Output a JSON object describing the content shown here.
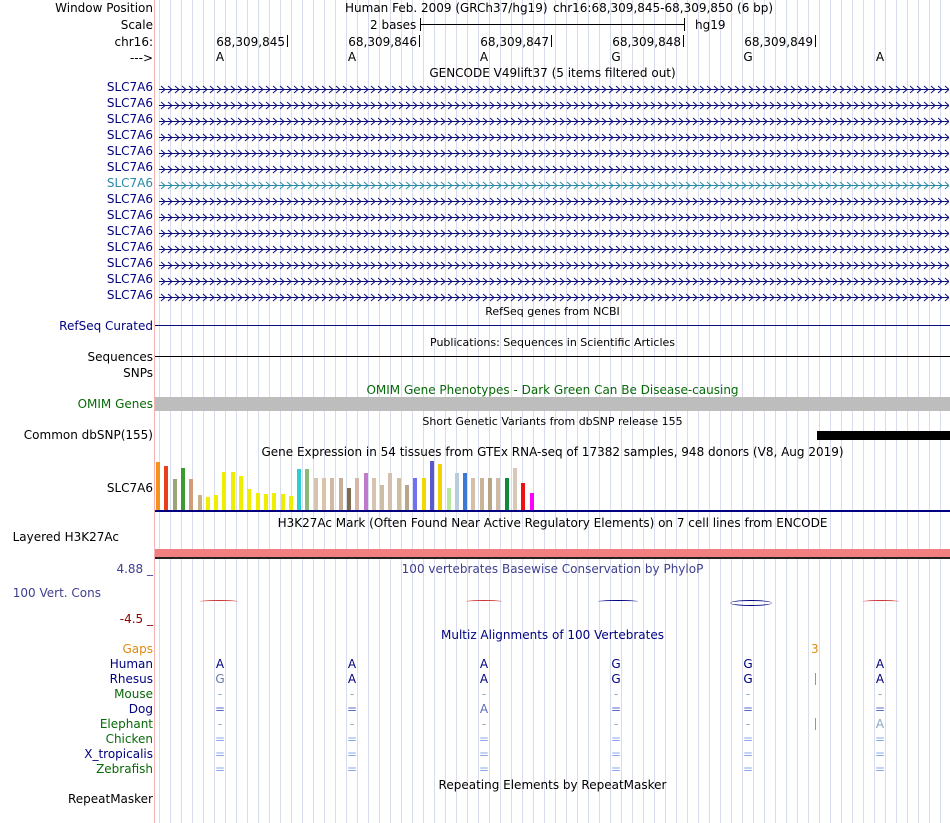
{
  "labels": {
    "window_position": "Window Position",
    "scale": "Scale",
    "chrom": "chr16:",
    "arrow": "--->",
    "refseq": "RefSeq Curated",
    "sequences": "Sequences",
    "snps": "SNPs",
    "omim": "OMIM Genes",
    "common_dbsnp": "Common dbSNP(155)",
    "gtex_gene": "SLC7A6",
    "h3k27ac": "Layered H3K27Ac",
    "cons_max": "4.88 _",
    "cons_label": "100 Vert. Cons",
    "cons_min": "-4.5 _",
    "repeatmasker": "RepeatMasker"
  },
  "header": {
    "assembly": "Human Feb. 2009 (GRCh37/hg19)",
    "position": "chr16:68,309,845-68,309,850 (6 bp)",
    "scale_text": "2 bases",
    "scale_db": "hg19"
  },
  "ruler": {
    "positions": [
      "68,309,845",
      "68,309,846",
      "68,309,847",
      "68,309,848",
      "68,309,849"
    ]
  },
  "bases": [
    "A",
    "A",
    "A",
    "G",
    "G",
    "A"
  ],
  "gencode": {
    "title": "GENCODE V49lift37 (5 items filtered out)",
    "genes": [
      "SLC7A6",
      "SLC7A6",
      "SLC7A6",
      "SLC7A6",
      "SLC7A6",
      "SLC7A6",
      "SLC7A6",
      "SLC7A6",
      "SLC7A6",
      "SLC7A6",
      "SLC7A6",
      "SLC7A6",
      "SLC7A6",
      "SLC7A6"
    ],
    "highlight_index": 6,
    "colors": {
      "default": "#0b0b7a",
      "highlight": "#2a8aa6"
    }
  },
  "tracks": {
    "refseq_title": "RefSeq genes from NCBI",
    "publications_title": "Publications: Sequences in Scientific Articles",
    "omim_title": "OMIM Gene Phenotypes - Dark Green Can Be Disease-causing",
    "dbsnp_title": "Short Genetic Variants from dbSNP release 155",
    "gtex_title": "Gene Expression in 54 tissues from GTEx RNA-seq of 17382 samples, 948 donors (V8, Aug 2019)",
    "h3k27ac_title": "H3K27Ac Mark (Often Found Near Active Regulatory Elements) on 7 cell lines from ENCODE",
    "cons_title": "100 vertebrates Basewise Conservation by PhyloP",
    "multiz_title": "Multiz Alignments of 100 Vertebrates",
    "repeat_title": "Repeating Elements by RepeatMasker"
  },
  "gtex": {
    "values": [
      48,
      44,
      31,
      42,
      31,
      15,
      13,
      15,
      38,
      38,
      34,
      21,
      17,
      16,
      17,
      16,
      14,
      41,
      41,
      32,
      32,
      32,
      32,
      22,
      32,
      37,
      32,
      25,
      37,
      32,
      25,
      32,
      32,
      49,
      46,
      22,
      37,
      37,
      32,
      32,
      32,
      32,
      32,
      42,
      27,
      17
    ],
    "colors": [
      "#f5911e",
      "#e8401c",
      "#9aa67a",
      "#3b9b32",
      "#d19c79",
      "#c9b289",
      "#eeee00",
      "#eeee00",
      "#eeee00",
      "#eeee00",
      "#eeee00",
      "#eeee00",
      "#eeee00",
      "#eeee00",
      "#eeee00",
      "#eeee00",
      "#eeee00",
      "#2ccfd0",
      "#8cb97a",
      "#d6c4b2",
      "#dcc2aa",
      "#d1b8a4",
      "#c8ad98",
      "#7d6b52",
      "#d4b8a6",
      "#c17ac9",
      "#d8c2b0",
      "#cdbda7",
      "#d3c0ae",
      "#cdbea0",
      "#b8a58e",
      "#7070f0",
      "#f0d800",
      "#5959cc",
      "#f2d200",
      "#b7e6a0",
      "#b8cce0",
      "#3b78d8",
      "#d4bfaa",
      "#c9b498",
      "#b8a588",
      "#d0bca4",
      "#0f8a3d",
      "#d8c8b8",
      "#ee1111",
      "#ff00ff"
    ]
  },
  "conservation": {
    "colors": {
      "positive": "#000080",
      "negative": "#cc3333"
    }
  },
  "multiz": {
    "gaps_label": "Gaps",
    "gap_count": "3",
    "species": [
      {
        "name": "Human",
        "color": "#000080",
        "row": [
          "A",
          "A",
          "A",
          "G",
          "G",
          "A"
        ],
        "row_color": "#000080",
        "insert": false
      },
      {
        "name": "Rhesus",
        "color": "#000080",
        "row": [
          "G",
          "A",
          "A",
          "G",
          "G",
          "A"
        ],
        "row_color": "#000080",
        "insert": true
      },
      {
        "name": "Mouse",
        "color": "#086908",
        "row": [
          "-",
          "-",
          "-",
          "-",
          "-",
          "-"
        ],
        "row_color": "#8aa8bf",
        "insert": false
      },
      {
        "name": "Dog",
        "color": "#000080",
        "row": [
          "=",
          "=",
          "A",
          "=",
          "=",
          "="
        ],
        "row_color": "#5a6ac0",
        "insert": false
      },
      {
        "name": "Elephant",
        "color": "#086908",
        "row": [
          "-",
          "-",
          "-",
          "-",
          "-",
          "A"
        ],
        "row_color": "#8aa8bf",
        "insert": true
      },
      {
        "name": "Chicken",
        "color": "#086908",
        "row": [
          "=",
          "=",
          "=",
          "=",
          "=",
          "="
        ],
        "row_color": "#8aa8e8",
        "insert": false
      },
      {
        "name": "X_tropicalis",
        "color": "#000080",
        "row": [
          "=",
          "=",
          "=",
          "=",
          "=",
          "="
        ],
        "row_color": "#8aa8e8",
        "insert": false
      },
      {
        "name": "Zebrafish",
        "color": "#086908",
        "row": [
          "=",
          "=",
          "=",
          "=",
          "=",
          "="
        ],
        "row_color": "#8aa8e8",
        "insert": false
      }
    ]
  }
}
